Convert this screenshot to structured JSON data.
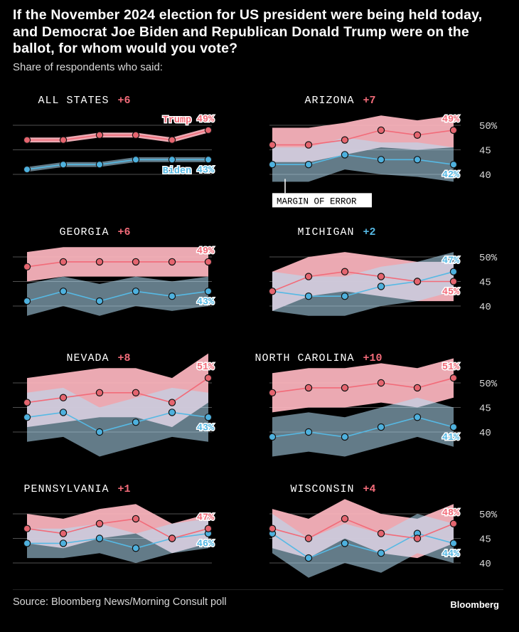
{
  "title": "If the November 2024 election for US president were being held today, and Democrat Joe Biden and Republican Donald Trump were on the ballot, for whom would you vote?",
  "subtitle": "Share of respondents who said:",
  "source": "Source: Bloomberg News/Morning Consult poll",
  "brand": "Bloomberg",
  "colors": {
    "trump": "#f26b79",
    "trump_point": "#e5656f",
    "trump_band": "#fdb6bf",
    "biden": "#56b9e4",
    "biden_point": "#4eb1de",
    "biden_band": "#b5e0f8",
    "overlap_band": "#c9a6bd",
    "background": "#000000",
    "gridline": "#505050"
  },
  "labels": {
    "trump": "Trump",
    "biden": "Biden",
    "margin_of_error": "MARGIN OF ERROR"
  },
  "chart_data": [
    {
      "type": "line",
      "title": "ALL STATES",
      "lead": "+6",
      "lead_party": "trump",
      "ylim": [
        38,
        52
      ],
      "yticks": [],
      "series": [
        {
          "name": "Trump",
          "values": [
            47,
            47,
            48,
            48,
            47,
            49
          ],
          "band": [
            [
              46.5,
              47.5
            ],
            [
              46.5,
              47.5
            ],
            [
              47.5,
              48.5
            ],
            [
              47.5,
              48.5
            ],
            [
              46.5,
              47.5
            ],
            [
              48.5,
              49.5
            ]
          ]
        },
        {
          "name": "Biden",
          "values": [
            41,
            42,
            42,
            43,
            43,
            43
          ],
          "band": [
            [
              40.5,
              41.5
            ],
            [
              41.5,
              42.5
            ],
            [
              41.5,
              42.5
            ],
            [
              42.5,
              43.5
            ],
            [
              42.5,
              43.5
            ],
            [
              42.5,
              43.5
            ]
          ]
        }
      ],
      "end_labels": [
        "49%",
        "43%"
      ]
    },
    {
      "type": "line",
      "title": "ARIZONA",
      "lead": "+7",
      "lead_party": "trump",
      "ylim": [
        38,
        52
      ],
      "yticks": [
        "50%",
        "45",
        "40"
      ],
      "series": [
        {
          "name": "Trump",
          "values": [
            46,
            46,
            47,
            49,
            48,
            49
          ],
          "band": [
            [
              42.5,
              49.5
            ],
            [
              42.5,
              49.5
            ],
            [
              44,
              50.5
            ],
            [
              45.5,
              52
            ],
            [
              45,
              51
            ],
            [
              45.5,
              52
            ]
          ]
        },
        {
          "name": "Biden",
          "values": [
            42,
            42,
            44,
            43,
            43,
            42
          ],
          "band": [
            [
              38.5,
              45.5
            ],
            [
              38.5,
              45.5
            ],
            [
              41,
              47.5
            ],
            [
              40,
              46.5
            ],
            [
              39.5,
              46.5
            ],
            [
              38.5,
              45.5
            ]
          ]
        }
      ],
      "end_labels": [
        "49%",
        "42%"
      ]
    },
    {
      "type": "line",
      "title": "GEORGIA",
      "lead": "+6",
      "lead_party": "trump",
      "ylim": [
        38,
        52
      ],
      "yticks": [],
      "series": [
        {
          "name": "Trump",
          "values": [
            48,
            49,
            49,
            49,
            49,
            49
          ],
          "band": [
            [
              45,
              51
            ],
            [
              46,
              52
            ],
            [
              46,
              52
            ],
            [
              46,
              52
            ],
            [
              46,
              52
            ],
            [
              46,
              52
            ]
          ]
        },
        {
          "name": "Biden",
          "values": [
            41,
            43,
            41,
            43,
            42,
            43
          ],
          "band": [
            [
              38,
              44.5
            ],
            [
              40,
              46
            ],
            [
              38,
              44.5
            ],
            [
              40,
              46
            ],
            [
              39,
              45
            ],
            [
              40,
              46
            ]
          ]
        }
      ],
      "end_labels": [
        "49%",
        "43%"
      ]
    },
    {
      "type": "line",
      "title": "MICHIGAN",
      "lead": "+2",
      "lead_party": "biden",
      "ylim": [
        38,
        52
      ],
      "yticks": [
        "50%",
        "45",
        "40"
      ],
      "series": [
        {
          "name": "Trump",
          "values": [
            43,
            46,
            47,
            46,
            45,
            45
          ],
          "band": [
            [
              39,
              47
            ],
            [
              42,
              50
            ],
            [
              43,
              51
            ],
            [
              42,
              50
            ],
            [
              41,
              49
            ],
            [
              41,
              49
            ]
          ]
        },
        {
          "name": "Biden",
          "values": [
            43,
            42,
            42,
            44,
            45,
            47
          ],
          "band": [
            [
              39,
              47
            ],
            [
              38,
              46
            ],
            [
              38,
              46
            ],
            [
              40,
              48
            ],
            [
              41,
              49
            ],
            [
              43,
              51
            ]
          ]
        }
      ],
      "end_labels": [
        "45%",
        "47%"
      ]
    },
    {
      "type": "line",
      "title": "NEVADA",
      "lead": "+8",
      "lead_party": "trump",
      "ylim": [
        38,
        52
      ],
      "yticks": [],
      "series": [
        {
          "name": "Trump",
          "values": [
            46,
            47,
            48,
            48,
            46,
            51
          ],
          "band": [
            [
              41,
              51
            ],
            [
              42,
              52
            ],
            [
              43,
              53
            ],
            [
              43,
              53
            ],
            [
              41,
              51
            ],
            [
              46,
              56
            ]
          ]
        },
        {
          "name": "Biden",
          "values": [
            43,
            44,
            40,
            42,
            44,
            43
          ],
          "band": [
            [
              38,
              48
            ],
            [
              39,
              49
            ],
            [
              35,
              45
            ],
            [
              37,
              47
            ],
            [
              39,
              49
            ],
            [
              38,
              48
            ]
          ]
        }
      ],
      "end_labels": [
        "51%",
        "43%"
      ]
    },
    {
      "type": "line",
      "title": "NORTH CAROLINA",
      "lead": "+10",
      "lead_party": "trump",
      "ylim": [
        38,
        52
      ],
      "yticks": [
        "50%",
        "45",
        "40"
      ],
      "series": [
        {
          "name": "Trump",
          "values": [
            48,
            49,
            49,
            50,
            49,
            51
          ],
          "band": [
            [
              44,
              52
            ],
            [
              45,
              53
            ],
            [
              45,
              53
            ],
            [
              46,
              54
            ],
            [
              45,
              53
            ],
            [
              47,
              55
            ]
          ]
        },
        {
          "name": "Biden",
          "values": [
            39,
            40,
            39,
            41,
            43,
            41
          ],
          "band": [
            [
              35,
              43
            ],
            [
              36,
              44
            ],
            [
              35,
              43
            ],
            [
              37,
              45
            ],
            [
              39,
              47
            ],
            [
              37,
              45
            ]
          ]
        }
      ],
      "end_labels": [
        "51%",
        "41%"
      ]
    },
    {
      "type": "line",
      "title": "PENNSYLVANIA",
      "lead": "+1",
      "lead_party": "trump",
      "ylim": [
        38,
        52
      ],
      "yticks": [],
      "series": [
        {
          "name": "Trump",
          "values": [
            47,
            46,
            48,
            49,
            45,
            47
          ],
          "band": [
            [
              44,
              50
            ],
            [
              43,
              49
            ],
            [
              45,
              51
            ],
            [
              46,
              52
            ],
            [
              42,
              48
            ],
            [
              44,
              50
            ]
          ]
        },
        {
          "name": "Biden",
          "values": [
            44,
            44,
            45,
            43,
            45,
            46
          ],
          "band": [
            [
              41,
              47
            ],
            [
              41,
              47
            ],
            [
              42,
              48
            ],
            [
              40,
              46
            ],
            [
              42,
              48
            ],
            [
              43,
              49
            ]
          ]
        }
      ],
      "end_labels": [
        "47%",
        "46%"
      ]
    },
    {
      "type": "line",
      "title": "WISCONSIN",
      "lead": "+4",
      "lead_party": "trump",
      "ylim": [
        38,
        52
      ],
      "yticks": [
        "50%",
        "45",
        "40"
      ],
      "series": [
        {
          "name": "Trump",
          "values": [
            47,
            45,
            49,
            46,
            45,
            48
          ],
          "band": [
            [
              43,
              51
            ],
            [
              41,
              49
            ],
            [
              45,
              53
            ],
            [
              42,
              50
            ],
            [
              41,
              49
            ],
            [
              44,
              52
            ]
          ]
        },
        {
          "name": "Biden",
          "values": [
            46,
            41,
            44,
            42,
            46,
            44
          ],
          "band": [
            [
              42,
              50
            ],
            [
              37,
              45
            ],
            [
              40,
              48
            ],
            [
              38,
              46
            ],
            [
              42,
              50
            ],
            [
              40,
              48
            ]
          ]
        }
      ],
      "end_labels": [
        "48%",
        "44%"
      ]
    }
  ]
}
